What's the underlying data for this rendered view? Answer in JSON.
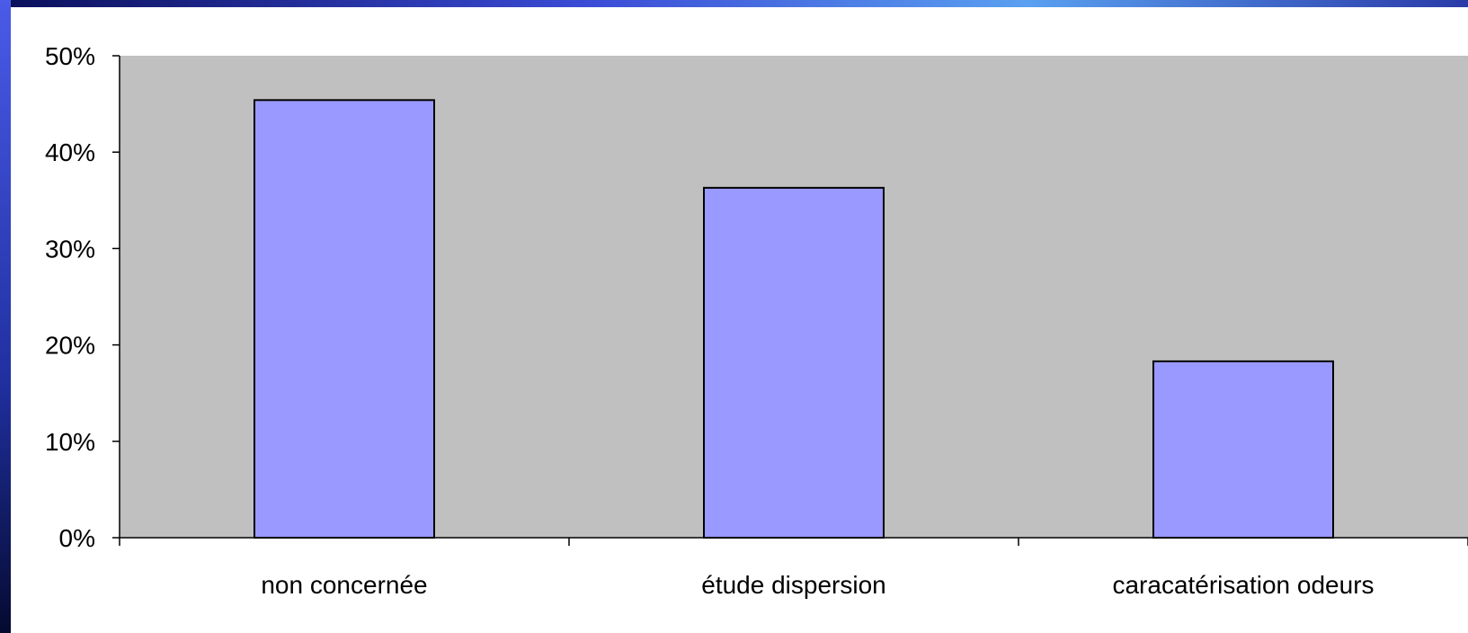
{
  "chart_data": {
    "type": "bar",
    "categories": [
      "non concernée",
      "étude dispersion",
      "caracatérisation odeurs"
    ],
    "values": [
      45.4,
      36.3,
      18.3
    ],
    "y_ticks": [
      "0%",
      "10%",
      "20%",
      "30%",
      "40%",
      "50%"
    ],
    "ylim": [
      0,
      50
    ],
    "grid": false,
    "colors": {
      "bar": "#9999ff",
      "bar_border": "#000000",
      "plot_background": "#c0c0c0",
      "axis": "#000000"
    }
  }
}
